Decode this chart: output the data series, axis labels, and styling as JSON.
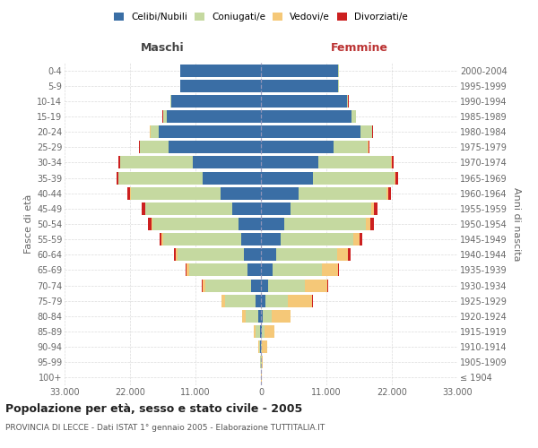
{
  "age_groups": [
    "100+",
    "95-99",
    "90-94",
    "85-89",
    "80-84",
    "75-79",
    "70-74",
    "65-69",
    "60-64",
    "55-59",
    "50-54",
    "45-49",
    "40-44",
    "35-39",
    "30-34",
    "25-29",
    "20-24",
    "15-19",
    "10-14",
    "5-9",
    "0-4"
  ],
  "birth_years": [
    "≤ 1904",
    "1905-1909",
    "1910-1914",
    "1915-1919",
    "1920-1924",
    "1925-1929",
    "1930-1934",
    "1935-1939",
    "1940-1944",
    "1945-1949",
    "1950-1954",
    "1955-1959",
    "1960-1964",
    "1965-1969",
    "1970-1974",
    "1975-1979",
    "1980-1984",
    "1985-1989",
    "1990-1994",
    "1995-1999",
    "2000-2004"
  ],
  "maschi_celibi": [
    20,
    40,
    80,
    200,
    400,
    900,
    1600,
    2300,
    2800,
    3300,
    3700,
    4800,
    6800,
    9800,
    11500,
    15500,
    17200,
    15800,
    15000,
    13500,
    13500
  ],
  "maschi_coniugati": [
    20,
    60,
    220,
    700,
    2200,
    5200,
    7800,
    9800,
    11200,
    13200,
    14600,
    14600,
    15100,
    14100,
    12100,
    4800,
    1400,
    650,
    180,
    70,
    35
  ],
  "maschi_vedovi": [
    5,
    25,
    130,
    300,
    550,
    480,
    430,
    340,
    290,
    170,
    115,
    85,
    65,
    45,
    35,
    70,
    70,
    35,
    12,
    6,
    3
  ],
  "maschi_divorziati": [
    1,
    4,
    8,
    18,
    35,
    65,
    90,
    170,
    270,
    430,
    530,
    620,
    430,
    330,
    260,
    170,
    80,
    35,
    12,
    6,
    3
  ],
  "femmine_nubili": [
    10,
    30,
    50,
    130,
    280,
    700,
    1200,
    1900,
    2600,
    3300,
    3900,
    4900,
    6400,
    8700,
    9700,
    12200,
    16800,
    15200,
    14500,
    13000,
    13000
  ],
  "femmine_coniugate": [
    20,
    60,
    170,
    520,
    1600,
    3800,
    6200,
    8300,
    10200,
    12200,
    13700,
    13700,
    14700,
    13700,
    12200,
    5800,
    1850,
    720,
    175,
    75,
    38
  ],
  "femmine_vedove": [
    65,
    260,
    780,
    1650,
    3100,
    4100,
    3700,
    2700,
    1850,
    1050,
    720,
    430,
    260,
    170,
    85,
    85,
    85,
    35,
    12,
    6,
    3
  ],
  "femmine_divorziate": [
    1,
    4,
    8,
    18,
    50,
    85,
    170,
    260,
    370,
    550,
    630,
    630,
    560,
    460,
    370,
    170,
    85,
    35,
    12,
    6,
    3
  ],
  "colors_celibi": "#3A6EA5",
  "colors_coniugati": "#C5D9A0",
  "colors_vedovi": "#F5C878",
  "colors_divorziati": "#CC2020",
  "xlim": 33000,
  "title": "Popolazione per età, sesso e stato civile - 2005",
  "subtitle": "PROVINCIA DI LECCE - Dati ISTAT 1° gennaio 2005 - Elaborazione TUTTITALIA.IT",
  "ylabel_left": "Fasce di età",
  "ylabel_right": "Anni di nascita",
  "label_maschi": "Maschi",
  "label_femmine": "Femmine",
  "legend_labels": [
    "Celibi/Nubili",
    "Coniugati/e",
    "Vedovi/e",
    "Divorziati/e"
  ],
  "bg_color": "#FFFFFF",
  "grid_color": "#CCCCCC"
}
